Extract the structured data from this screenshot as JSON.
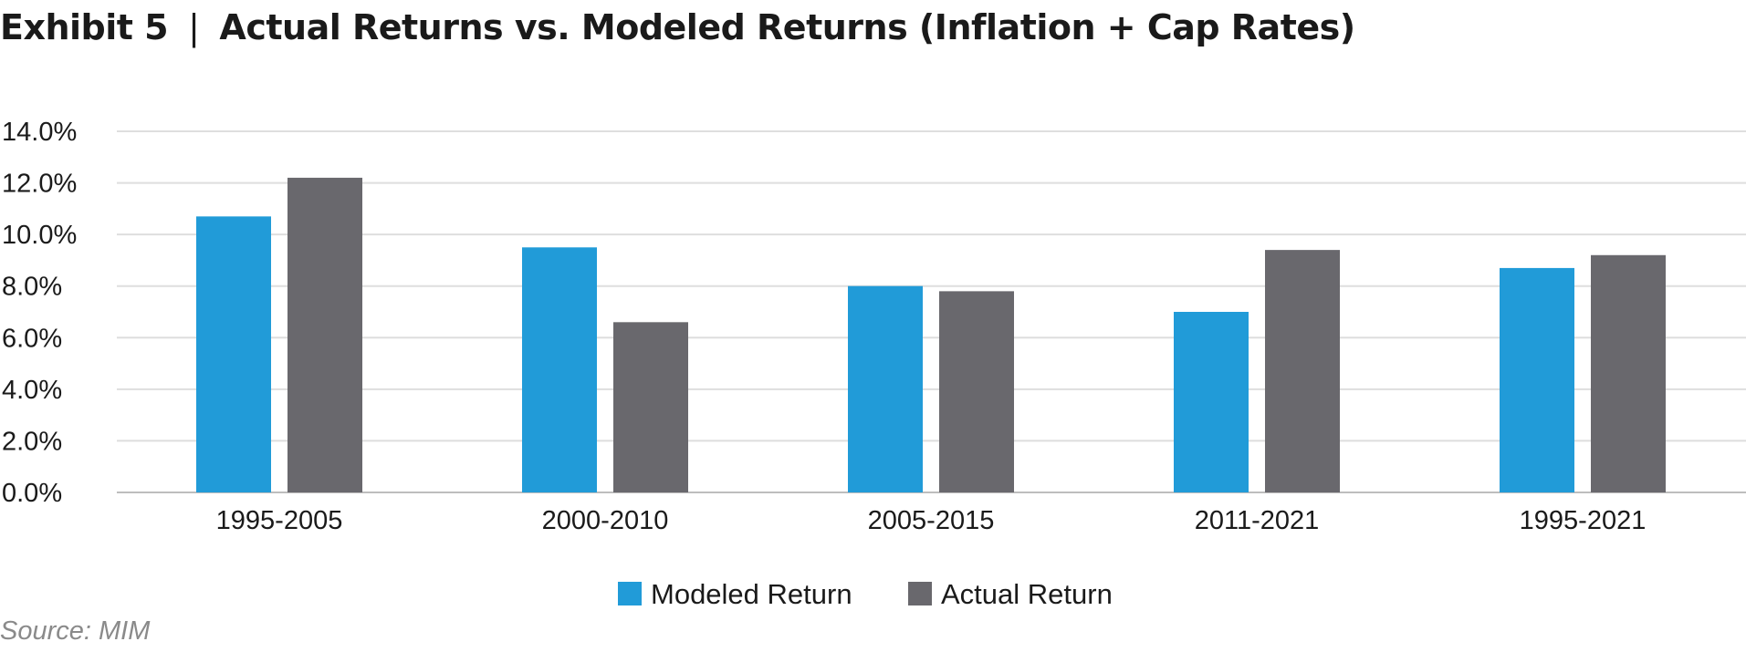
{
  "exhibit_label": "Exhibit 5",
  "separator": "|",
  "source": "Source: MIM",
  "chart_data": {
    "type": "bar",
    "title": "Actual Returns vs. Modeled Returns (Inflation + Cap Rates)",
    "xlabel": "",
    "ylabel": "",
    "categories": [
      "1995-2005",
      "2000-2010",
      "2005-2015",
      "2011-2021",
      "1995-2021"
    ],
    "series": [
      {
        "name": "Modeled Return",
        "color": "#219BD8",
        "values": [
          10.7,
          9.5,
          8.0,
          7.0,
          8.7
        ]
      },
      {
        "name": "Actual Return",
        "color": "#69686D",
        "values": [
          12.2,
          6.6,
          7.8,
          9.4,
          9.2
        ]
      }
    ],
    "ylim": [
      0,
      14
    ],
    "yticks": [
      0,
      2,
      4,
      6,
      8,
      10,
      12,
      14
    ],
    "ytick_labels": [
      "0.0%",
      "2.0%",
      "4.0%",
      "6.0%",
      "8.0%",
      "10.0%",
      "12.0%",
      "14.0%"
    ],
    "grid": true,
    "legend_position": "bottom-center"
  }
}
